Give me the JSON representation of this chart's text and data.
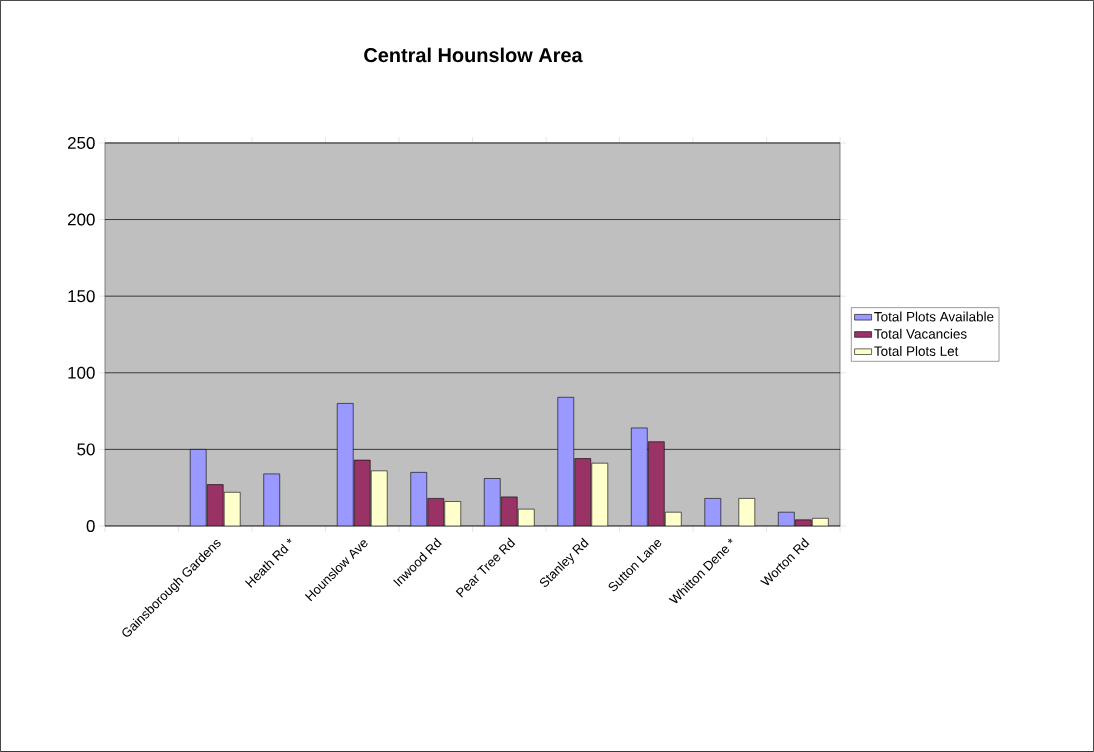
{
  "chart_data": {
    "type": "bar",
    "title": "Central Hounslow Area",
    "categories": [
      null,
      "Gainsborough Gardens",
      "Heath Rd *",
      "Hounslow Ave",
      "Inwood Rd",
      "Pear Tree Rd",
      "Stanley Rd",
      "Sutton Lane",
      "Whitton Dene *",
      "Worton Rd"
    ],
    "series": [
      {
        "name": "Total Plots Available",
        "color": "#9999ff",
        "values": [
          null,
          50,
          34,
          80,
          35,
          31,
          84,
          64,
          18,
          9
        ]
      },
      {
        "name": "Total Vacancies",
        "color": "#993366",
        "values": [
          null,
          27,
          null,
          43,
          18,
          19,
          44,
          55,
          null,
          4
        ]
      },
      {
        "name": "Total Plots Let",
        "color": "#ffffcc",
        "values": [
          null,
          22,
          null,
          36,
          16,
          11,
          41,
          9,
          18,
          5
        ]
      }
    ],
    "ylim": [
      0,
      250
    ],
    "yticks": [
      0,
      50,
      100,
      150,
      200,
      250
    ],
    "grid": "y",
    "legend": "right"
  }
}
